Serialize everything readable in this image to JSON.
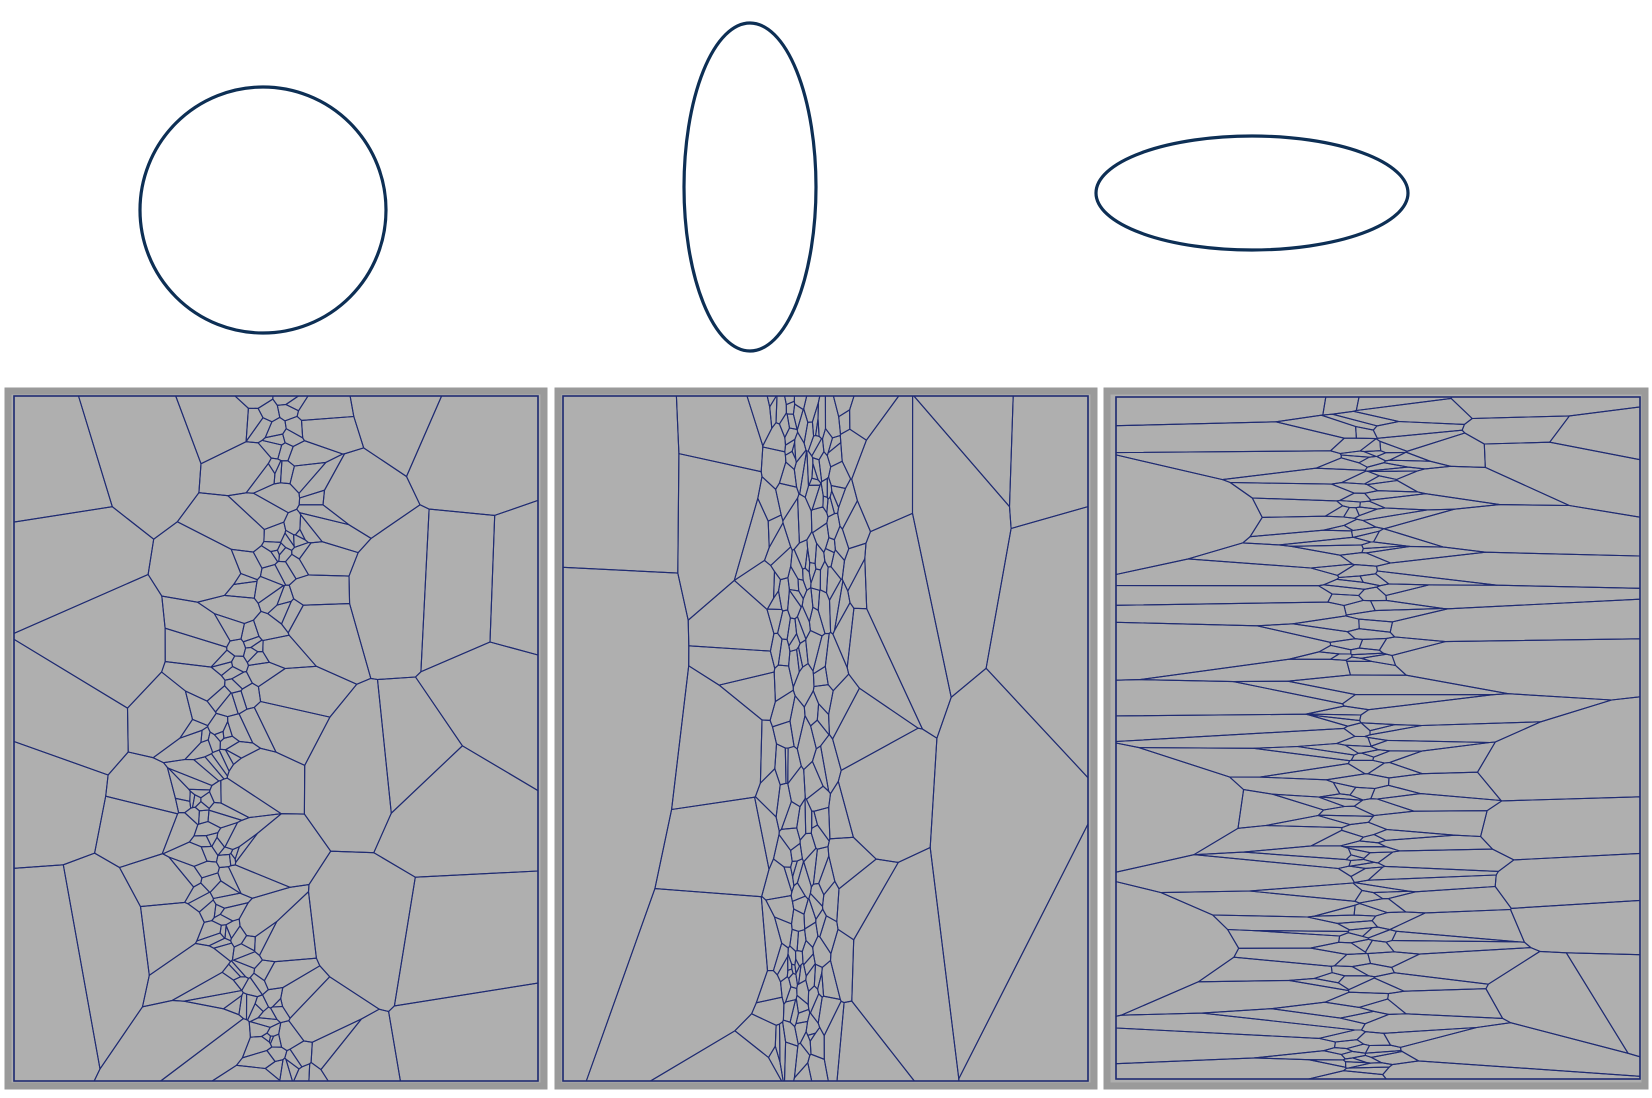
{
  "colors": {
    "outline": "#0d2f55",
    "cell_edge": "#1f2b72",
    "panel_fill": "#afafaf",
    "panel_frame": "#9a9a9a",
    "background": "#ffffff"
  },
  "panels": [
    {
      "id": "circle",
      "shape": "circle",
      "anisotropy": "isotropic"
    },
    {
      "id": "vertical-ellipse",
      "shape": "ellipse",
      "anisotropy": "vertical"
    },
    {
      "id": "horizontal-ellipse",
      "shape": "ellipse",
      "anisotropy": "horizontal"
    }
  ]
}
